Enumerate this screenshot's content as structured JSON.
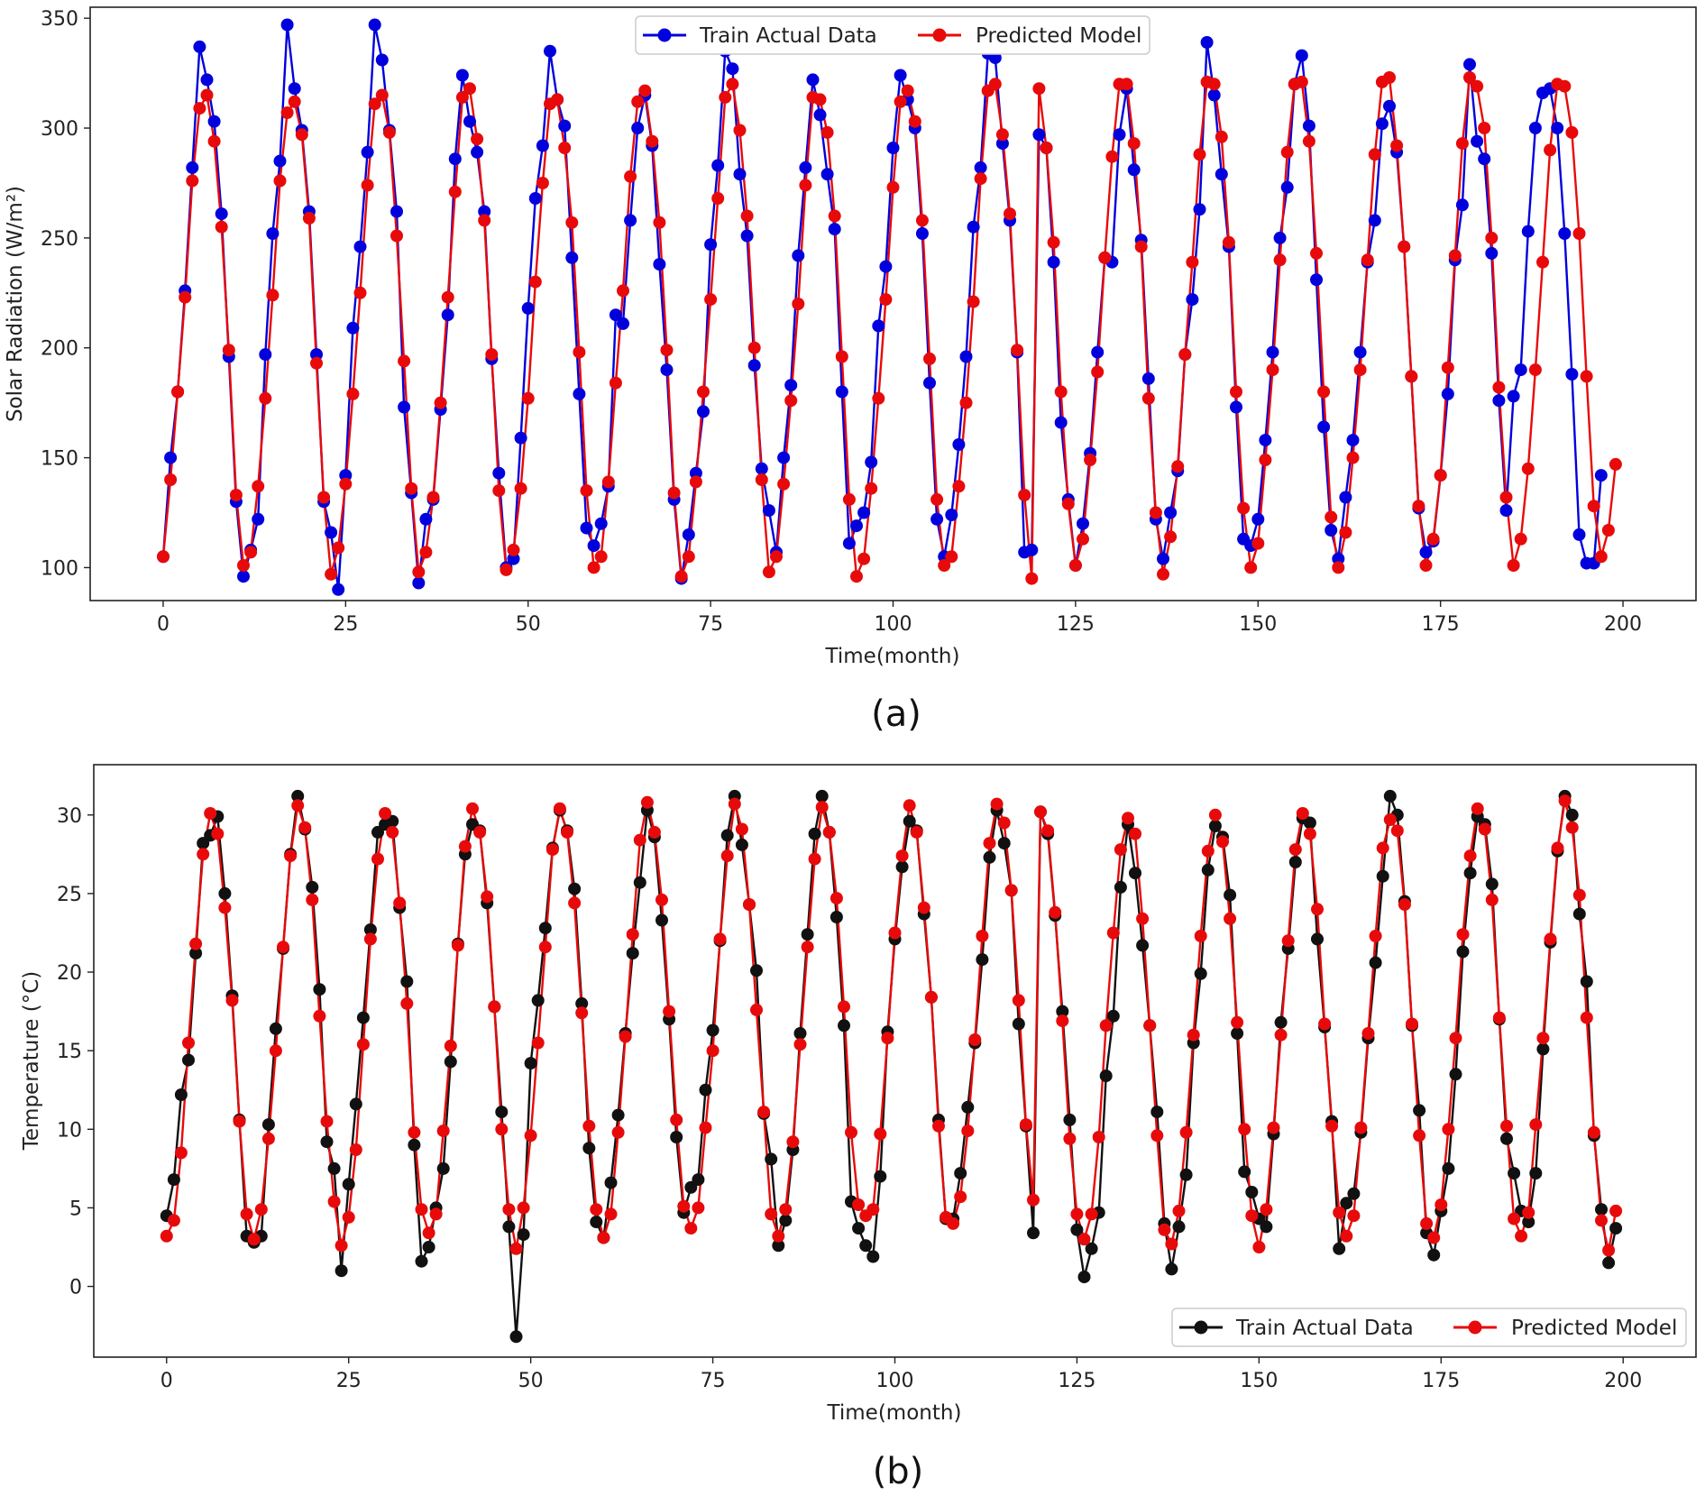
{
  "chart_data": [
    {
      "id": "a",
      "type": "line",
      "caption": "(a)",
      "title": "",
      "xlabel": "Time(month)",
      "ylabel": "Solar Radiation (W/m²)",
      "xlim": [
        -10,
        210
      ],
      "ylim": [
        85,
        355
      ],
      "xticks": [
        0,
        25,
        50,
        75,
        100,
        125,
        150,
        175,
        200
      ],
      "yticks": [
        100,
        150,
        200,
        250,
        300,
        350
      ],
      "legend_position": "top-center",
      "grid": false,
      "series": [
        {
          "name": "Train Actual Data",
          "color": "#0000dd",
          "values": [
            105,
            150,
            180,
            226,
            282,
            337,
            322,
            303,
            261,
            196,
            130,
            96,
            108,
            122,
            197,
            252,
            285,
            347,
            318,
            299,
            262,
            197,
            130,
            116,
            90,
            142,
            209,
            246,
            289,
            347,
            331,
            299,
            262,
            173,
            134,
            93,
            122,
            131,
            172,
            215,
            286,
            324,
            303,
            289,
            262,
            195,
            143,
            100,
            104,
            159,
            218,
            268,
            292,
            335,
            313,
            301,
            241,
            179,
            118,
            110,
            120,
            137,
            215,
            211,
            258,
            300,
            315,
            292,
            238,
            190,
            131,
            95,
            115,
            143,
            171,
            247,
            283,
            335,
            327,
            279,
            251,
            192,
            145,
            126,
            107,
            150,
            183,
            242,
            282,
            322,
            306,
            279,
            254,
            180,
            111,
            119,
            125,
            148,
            210,
            237,
            291,
            324,
            313,
            300,
            252,
            184,
            122,
            105,
            124,
            156,
            196,
            255,
            282,
            334,
            332,
            293,
            258,
            198,
            107,
            108,
            297,
            291,
            239,
            166,
            131,
            101,
            120,
            152,
            198,
            241,
            239,
            297,
            318,
            281,
            249,
            186,
            122,
            104,
            125,
            144,
            197,
            222,
            263,
            339,
            315,
            279,
            246,
            173,
            113,
            110,
            122,
            158,
            198,
            250,
            273,
            320,
            333,
            301,
            231,
            164,
            117,
            104,
            132,
            158,
            198,
            239,
            258,
            302,
            310,
            289,
            246,
            187,
            127,
            107,
            112,
            142,
            179,
            240,
            265,
            329,
            294,
            286,
            243,
            176,
            126,
            178,
            190,
            253,
            300,
            316,
            318,
            300,
            252,
            188,
            115,
            102,
            102,
            142
          ]
        },
        {
          "name": "Predicted Model",
          "color": "#e80a0a",
          "values": [
            105,
            140,
            180,
            223,
            276,
            309,
            315,
            294,
            255,
            199,
            133,
            101,
            107,
            137,
            177,
            224,
            276,
            307,
            312,
            297,
            259,
            193,
            132,
            97,
            109,
            138,
            179,
            225,
            274,
            311,
            315,
            298,
            251,
            194,
            136,
            98,
            107,
            132,
            175,
            223,
            271,
            314,
            318,
            295,
            258,
            197,
            135,
            99,
            108,
            136,
            177,
            230,
            275,
            311,
            313,
            291,
            257,
            198,
            135,
            100,
            105,
            139,
            184,
            226,
            278,
            312,
            317,
            294,
            257,
            199,
            134,
            96,
            105,
            139,
            180,
            222,
            268,
            314,
            320,
            299,
            260,
            200,
            140,
            98,
            105,
            138,
            176,
            220,
            274,
            314,
            313,
            298,
            260,
            196,
            131,
            96,
            104,
            136,
            177,
            222,
            273,
            312,
            317,
            303,
            258,
            195,
            131,
            101,
            105,
            137,
            175,
            221,
            277,
            317,
            320,
            297,
            261,
            199,
            133,
            95,
            318,
            291,
            248,
            180,
            129,
            101,
            113,
            149,
            189,
            241,
            287,
            320,
            320,
            293,
            246,
            177,
            125,
            97,
            114,
            146,
            197,
            239,
            288,
            321,
            320,
            296,
            248,
            180,
            127,
            100,
            111,
            149,
            190,
            240,
            289,
            320,
            321,
            294,
            243,
            180,
            123,
            100,
            116,
            150,
            190,
            240,
            288,
            321,
            323,
            292,
            246,
            187,
            128,
            101,
            113,
            142,
            191,
            242,
            293,
            323,
            319,
            300,
            250,
            182,
            132,
            101,
            113,
            145,
            190,
            239,
            290,
            320,
            319,
            298,
            252,
            187,
            128,
            105,
            117,
            147
          ]
        }
      ]
    },
    {
      "id": "b",
      "type": "line",
      "caption": "(b)",
      "title": "",
      "xlabel": "Time(month)",
      "ylabel": "Temperature (°C)",
      "xlim": [
        -10,
        210
      ],
      "ylim": [
        -4.5,
        33.2
      ],
      "xticks": [
        0,
        25,
        50,
        75,
        100,
        125,
        150,
        175,
        200
      ],
      "yticks": [
        0,
        5,
        10,
        15,
        20,
        25,
        30
      ],
      "legend_position": "bottom-right",
      "grid": false,
      "series": [
        {
          "name": "Train Actual Data",
          "color": "#111111",
          "values": [
            4.5,
            6.8,
            12.2,
            14.4,
            21.2,
            28.2,
            28.7,
            29.9,
            25.0,
            18.5,
            10.6,
            3.2,
            2.8,
            3.2,
            10.3,
            16.4,
            21.5,
            27.5,
            31.2,
            29.1,
            25.4,
            18.9,
            9.2,
            7.5,
            1.0,
            6.5,
            11.6,
            17.1,
            22.7,
            28.9,
            29.4,
            29.6,
            24.1,
            19.4,
            9.0,
            1.6,
            2.5,
            5.0,
            7.5,
            14.3,
            21.8,
            27.5,
            29.4,
            29.0,
            24.4,
            17.8,
            11.1,
            3.8,
            -3.2,
            3.3,
            14.2,
            18.2,
            22.8,
            27.9,
            30.3,
            29.0,
            25.3,
            18.0,
            8.8,
            4.1,
            3.1,
            6.6,
            10.9,
            16.1,
            21.2,
            25.7,
            30.3,
            28.6,
            23.3,
            17.0,
            9.5,
            4.7,
            6.3,
            6.8,
            12.5,
            16.3,
            22.0,
            28.7,
            31.2,
            28.1,
            24.3,
            20.1,
            11.0,
            8.1,
            2.6,
            4.2,
            8.7,
            16.1,
            22.4,
            28.8,
            31.2,
            28.9,
            23.5,
            16.6,
            5.4,
            3.7,
            2.6,
            1.9,
            7.0,
            16.2,
            22.1,
            26.7,
            29.6,
            29.0,
            23.7,
            18.4,
            10.6,
            4.3,
            4.3,
            7.2,
            11.4,
            15.5,
            20.8,
            27.3,
            30.3,
            28.2,
            25.2,
            16.7,
            10.2,
            3.4,
            30.2,
            28.8,
            23.6,
            17.5,
            10.6,
            3.6,
            0.6,
            2.4,
            4.7,
            13.4,
            17.2,
            25.4,
            29.4,
            26.3,
            21.7,
            16.6,
            11.1,
            4.0,
            1.1,
            3.8,
            7.1,
            15.5,
            19.9,
            26.5,
            29.3,
            28.6,
            24.9,
            16.1,
            7.3,
            6.0,
            4.3,
            3.8,
            9.7,
            16.8,
            21.5,
            27.0,
            29.8,
            29.5,
            22.1,
            16.5,
            10.5,
            2.4,
            5.3,
            5.9,
            9.8,
            15.8,
            20.6,
            26.1,
            31.2,
            30.0,
            24.5,
            16.6,
            11.2,
            3.4,
            2.0,
            4.8,
            7.5,
            13.5,
            21.3,
            26.3,
            29.9,
            29.4,
            25.6,
            17.0,
            9.4,
            7.2,
            4.8,
            4.1,
            7.2,
            15.1,
            21.9,
            27.7,
            31.2,
            30.0,
            23.7,
            19.4,
            9.6,
            4.9,
            1.5,
            3.7
          ]
        },
        {
          "name": "Predicted Model",
          "color": "#e80a0a",
          "values": [
            3.2,
            4.2,
            8.5,
            15.5,
            21.8,
            27.5,
            30.1,
            28.8,
            24.1,
            18.2,
            10.5,
            4.6,
            3.0,
            4.9,
            9.4,
            15.0,
            21.6,
            27.4,
            30.6,
            29.2,
            24.6,
            17.2,
            10.5,
            5.4,
            2.6,
            4.4,
            8.7,
            15.4,
            22.1,
            27.2,
            30.1,
            28.9,
            24.4,
            18.0,
            9.8,
            4.9,
            3.4,
            4.6,
            9.9,
            15.3,
            21.7,
            28.0,
            30.4,
            28.9,
            24.8,
            17.8,
            10.0,
            4.9,
            2.4,
            5.0,
            9.6,
            15.5,
            21.6,
            27.8,
            30.4,
            28.9,
            24.4,
            17.4,
            10.2,
            4.9,
            3.1,
            4.6,
            9.8,
            15.9,
            22.4,
            28.4,
            30.8,
            28.9,
            24.6,
            17.5,
            10.6,
            5.1,
            3.7,
            5.0,
            10.1,
            15.0,
            22.1,
            27.4,
            30.7,
            29.1,
            24.3,
            17.6,
            11.1,
            4.6,
            3.2,
            4.9,
            9.2,
            15.4,
            21.6,
            27.2,
            30.5,
            28.9,
            24.7,
            17.8,
            9.8,
            5.2,
            4.5,
            4.9,
            9.7,
            15.8,
            22.5,
            27.4,
            30.6,
            28.9,
            24.1,
            18.4,
            10.2,
            4.4,
            4.0,
            5.7,
            9.9,
            15.7,
            22.3,
            28.2,
            30.7,
            29.5,
            25.2,
            18.2,
            10.3,
            5.5,
            30.2,
            29.0,
            23.8,
            16.9,
            9.4,
            4.6,
            3.0,
            4.6,
            9.5,
            16.6,
            22.5,
            27.8,
            29.8,
            28.8,
            23.4,
            16.6,
            9.6,
            3.6,
            2.7,
            4.8,
            9.8,
            16.0,
            22.3,
            27.7,
            30.0,
            28.3,
            23.4,
            16.8,
            10.0,
            4.5,
            2.5,
            4.9,
            10.1,
            16.0,
            22.0,
            27.8,
            30.1,
            28.8,
            24.0,
            16.7,
            10.2,
            4.7,
            3.2,
            4.5,
            10.1,
            16.1,
            22.3,
            27.9,
            29.7,
            29.0,
            24.3,
            16.7,
            9.6,
            4.0,
            3.1,
            5.2,
            10.0,
            15.8,
            22.4,
            27.4,
            30.4,
            29.1,
            24.6,
            17.1,
            10.2,
            4.3,
            3.2,
            4.7,
            10.3,
            15.8,
            22.1,
            27.9,
            30.9,
            29.2,
            24.9,
            17.1,
            9.8,
            4.2,
            2.3,
            4.8
          ]
        }
      ]
    }
  ]
}
